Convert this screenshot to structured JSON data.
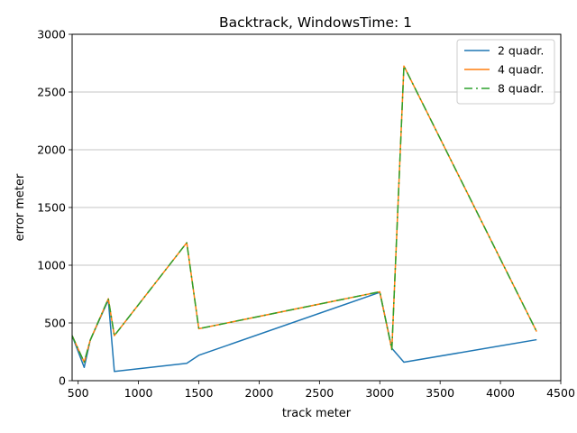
{
  "chart_data": {
    "type": "line",
    "title": "Backtrack, WindowsTime: 1",
    "xlabel": "track meter",
    "ylabel": "error meter",
    "xlim": [
      450,
      4500
    ],
    "ylim": [
      0,
      3000
    ],
    "xticks": [
      500,
      1000,
      1500,
      2000,
      2500,
      3000,
      3500,
      4000,
      4500
    ],
    "yticks": [
      0,
      500,
      1000,
      1500,
      2000,
      2500,
      3000
    ],
    "grid": "horizontal",
    "legend_position": "top-right",
    "series": [
      {
        "name": "2 quadr.",
        "color": "#1f77b4",
        "style": "solid",
        "points": [
          [
            450,
            390
          ],
          [
            550,
            115
          ],
          [
            600,
            350
          ],
          [
            750,
            700
          ],
          [
            800,
            80
          ],
          [
            1400,
            150
          ],
          [
            1500,
            220
          ],
          [
            3000,
            765
          ],
          [
            3100,
            280
          ],
          [
            3200,
            160
          ],
          [
            4300,
            355
          ]
        ]
      },
      {
        "name": "4 quadr.",
        "color": "#ff7f0e",
        "style": "solid",
        "points": [
          [
            450,
            390
          ],
          [
            550,
            160
          ],
          [
            600,
            350
          ],
          [
            750,
            710
          ],
          [
            800,
            390
          ],
          [
            1400,
            1195
          ],
          [
            1500,
            450
          ],
          [
            3000,
            770
          ],
          [
            3100,
            270
          ],
          [
            3200,
            2725
          ],
          [
            4300,
            425
          ]
        ]
      },
      {
        "name": "8 quadr.",
        "color": "#2ca02c",
        "style": "dashdot",
        "points": [
          [
            450,
            390
          ],
          [
            550,
            160
          ],
          [
            600,
            350
          ],
          [
            750,
            710
          ],
          [
            800,
            390
          ],
          [
            1400,
            1195
          ],
          [
            1500,
            450
          ],
          [
            3000,
            770
          ],
          [
            3100,
            270
          ],
          [
            3200,
            2725
          ],
          [
            4300,
            425
          ]
        ]
      }
    ]
  }
}
